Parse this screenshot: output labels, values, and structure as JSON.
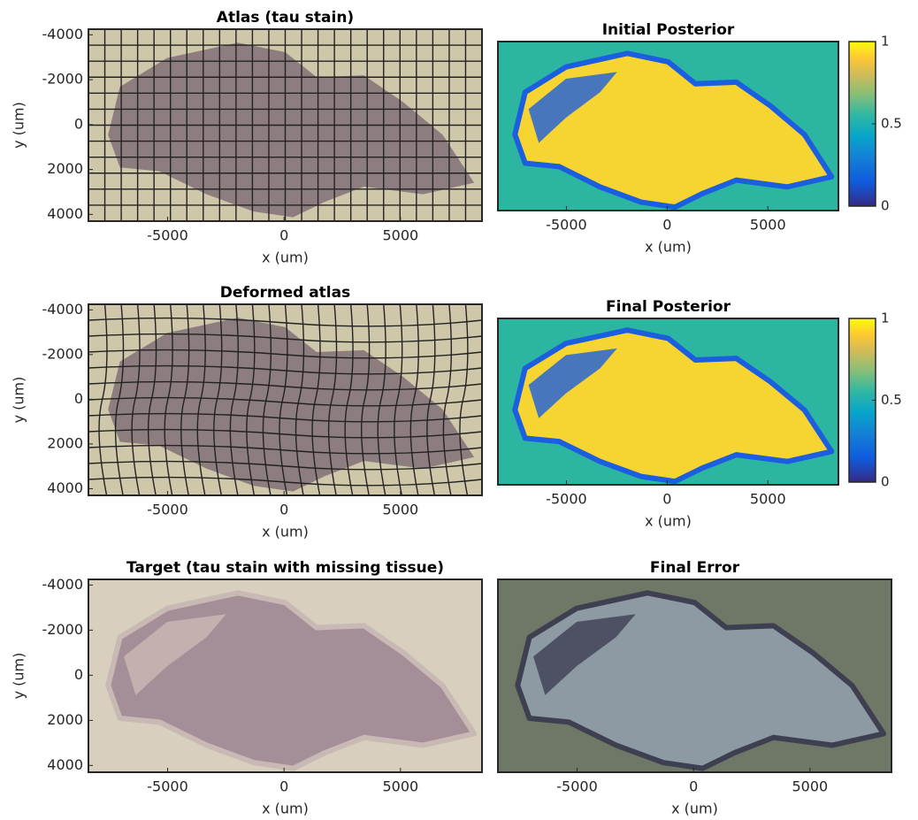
{
  "chart_data": [
    {
      "type": "image",
      "title": "Atlas (tau stain)",
      "xlabel": "x (um)",
      "ylabel": "y (um)",
      "xlim": [
        -8400,
        8500
      ],
      "ylim": [
        -4250,
        4300
      ],
      "xticks": [
        -5000,
        0,
        5000
      ],
      "yticks": [
        -4000,
        -2000,
        0,
        2000,
        4000
      ]
    },
    {
      "type": "image",
      "title": "Initial Posterior",
      "xlabel": "x (um)",
      "xlim": [
        -8400,
        8500
      ],
      "ylim": [
        -4250,
        4300
      ],
      "xticks": [
        -5000,
        0,
        5000
      ],
      "clim": [
        0,
        1
      ],
      "cticks": [
        0,
        0.5,
        1
      ]
    },
    {
      "type": "image",
      "title": "Deformed atlas",
      "xlabel": "x (um)",
      "ylabel": "y (um)",
      "xlim": [
        -8400,
        8500
      ],
      "ylim": [
        -4250,
        4300
      ],
      "xticks": [
        -5000,
        0,
        5000
      ],
      "yticks": [
        -4000,
        -2000,
        0,
        2000,
        4000
      ]
    },
    {
      "type": "image",
      "title": "Final Posterior",
      "xlabel": "x (um)",
      "xlim": [
        -8400,
        8500
      ],
      "ylim": [
        -4250,
        4300
      ],
      "xticks": [
        -5000,
        0,
        5000
      ],
      "clim": [
        0,
        1
      ],
      "cticks": [
        0,
        0.5,
        1
      ]
    },
    {
      "type": "image",
      "title": "Target (tau stain with missing tissue)",
      "xlabel": "x (um)",
      "ylabel": "y (um)",
      "xlim": [
        -8400,
        8500
      ],
      "ylim": [
        -4250,
        4300
      ],
      "xticks": [
        -5000,
        0,
        5000
      ],
      "yticks": [
        -4000,
        -2000,
        0,
        2000,
        4000
      ]
    },
    {
      "type": "image",
      "title": "Final Error",
      "xlabel": "x (um)",
      "xlim": [
        -8400,
        8500
      ],
      "ylim": [
        -4250,
        4300
      ],
      "xticks": [
        -5000,
        0,
        5000
      ]
    }
  ]
}
